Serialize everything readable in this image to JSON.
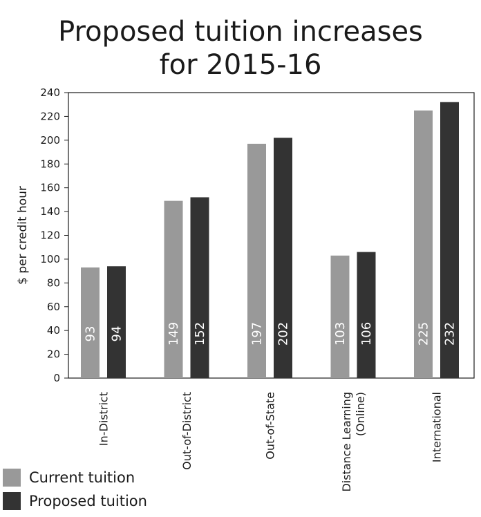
{
  "chart_data": {
    "type": "bar",
    "title_lines": [
      "Proposed tuition increases",
      "for 2015-16"
    ],
    "ylabel": "$ per credit hour",
    "xlabel": "",
    "ylim": [
      0,
      240
    ],
    "yticks": [
      0,
      20,
      40,
      60,
      80,
      100,
      120,
      140,
      160,
      180,
      200,
      220,
      240
    ],
    "grid": false,
    "legend_position": "bottom-left",
    "categories": [
      [
        "In-District"
      ],
      [
        "Out-of-District"
      ],
      [
        "Out-of-State"
      ],
      [
        "Distance Learning",
        "(Online)"
      ],
      [
        "International"
      ]
    ],
    "series": [
      {
        "name": "Current tuition",
        "color": "#999999",
        "values": [
          93,
          149,
          197,
          103,
          225
        ]
      },
      {
        "name": "Proposed tuition",
        "color": "#333333",
        "values": [
          94,
          152,
          202,
          106,
          232
        ]
      }
    ]
  }
}
